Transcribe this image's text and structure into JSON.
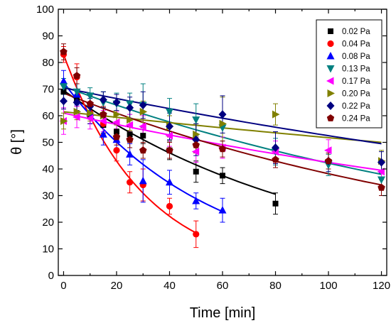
{
  "chart_data": {
    "type": "scatter",
    "xlabel": "Time [min]",
    "ylabel": "θ [°]",
    "xlim": [
      -2,
      122
    ],
    "ylim": [
      0,
      100
    ],
    "xticks": [
      0,
      10,
      20,
      30,
      40,
      50,
      60,
      70,
      80,
      90,
      100,
      110,
      120
    ],
    "xtick_labels": [
      "0",
      "",
      "20",
      "",
      "40",
      "",
      "60",
      "",
      "80",
      "",
      "100",
      "",
      "120"
    ],
    "yticks": [
      0,
      10,
      20,
      30,
      40,
      50,
      60,
      70,
      80,
      90,
      100
    ],
    "ytick_labels": [
      "0",
      "10",
      "20",
      "30",
      "40",
      "50",
      "60",
      "70",
      "80",
      "90",
      "100"
    ],
    "legend_position": "top-right",
    "grid": false,
    "series": [
      {
        "name": "0.02 Pa",
        "color": "#000000",
        "marker": "square",
        "x": [
          0,
          5,
          10,
          15,
          20,
          25,
          30,
          40,
          50,
          60,
          80
        ],
        "y": [
          69,
          66.5,
          60,
          56.5,
          54,
          53,
          52.5,
          47,
          39,
          37.5,
          27
        ],
        "err": [
          3,
          3,
          3,
          3,
          3,
          3,
          3,
          3.5,
          4,
          3,
          4
        ],
        "fit_x": [
          0,
          80
        ],
        "fit_y": [
          69.5,
          30.5
        ]
      },
      {
        "name": "0.04 Pa",
        "color": "#ff0000",
        "marker": "circle",
        "x": [
          0,
          5,
          10,
          15,
          20,
          25,
          30,
          40,
          50
        ],
        "y": [
          83,
          74.5,
          61,
          57,
          47,
          35,
          34,
          26,
          15.5
        ],
        "err": [
          3,
          5,
          4,
          4,
          4,
          4,
          6,
          3,
          5
        ],
        "fit_x": [
          0,
          50
        ],
        "fit_y": [
          83,
          16
        ]
      },
      {
        "name": "0.08 Pa",
        "color": "#0000ff",
        "marker": "triangle-up",
        "x": [
          0,
          5,
          10,
          15,
          20,
          25,
          30,
          40,
          50,
          60
        ],
        "y": [
          73,
          68,
          61,
          53,
          51,
          45.5,
          35.5,
          35,
          28,
          24.5
        ],
        "err": [
          4,
          4,
          4,
          4,
          4,
          4,
          8,
          4.5,
          3,
          4.5
        ],
        "fit_x": [
          0,
          60
        ],
        "fit_y": [
          72.5,
          24
        ]
      },
      {
        "name": "0.13 Pa",
        "color": "#008080",
        "marker": "triangle-down",
        "x": [
          0,
          5,
          10,
          15,
          20,
          25,
          30,
          40,
          50,
          60,
          80,
          100,
          120
        ],
        "y": [
          71,
          69,
          67.5,
          65,
          64.5,
          64.5,
          64,
          61.5,
          58.5,
          55.5,
          46.5,
          41.5,
          36
        ],
        "err": [
          3,
          3,
          3,
          4,
          4,
          4,
          8,
          5,
          6,
          5,
          5,
          4,
          3
        ],
        "fit_x": [
          0,
          120
        ],
        "fit_y": [
          71,
          38
        ]
      },
      {
        "name": "0.17 Pa",
        "color": "#ff00ff",
        "marker": "triangle-left",
        "x": [
          0,
          5,
          10,
          15,
          20,
          25,
          30,
          40,
          50,
          60,
          80,
          100,
          120
        ],
        "y": [
          58,
          59.5,
          59,
          58,
          57.5,
          56.5,
          56,
          52.5,
          46.5,
          48,
          46.5,
          47,
          39
        ],
        "err": [
          5,
          4,
          4,
          4,
          4,
          4,
          4,
          4,
          4,
          4,
          4,
          4,
          3
        ],
        "fit_x": [
          0,
          120
        ],
        "fit_y": [
          61,
          39.5
        ]
      },
      {
        "name": "0.20 Pa",
        "color": "#808000",
        "marker": "triangle-right",
        "x": [
          0,
          5,
          10,
          15,
          20,
          25,
          30,
          40,
          50,
          60,
          80,
          120
        ],
        "y": [
          58,
          61.5,
          61,
          60,
          60.5,
          58.5,
          61.5,
          56,
          53,
          57,
          60.5,
          43
        ],
        "err": [
          3,
          3,
          3,
          3,
          4,
          4,
          4,
          4,
          4,
          10,
          4,
          4
        ],
        "fit_x": [
          0,
          120
        ],
        "fit_y": [
          61.5,
          50
        ]
      },
      {
        "name": "0.22 Pa",
        "color": "#000080",
        "marker": "diamond",
        "x": [
          0,
          5,
          10,
          15,
          20,
          25,
          30,
          40,
          50,
          60,
          80,
          100,
          120
        ],
        "y": [
          65.5,
          65,
          63.5,
          66,
          65,
          63,
          64,
          56,
          51,
          60.5,
          48,
          43,
          42.5
        ],
        "err": [
          3,
          3,
          3,
          3,
          3,
          4,
          5,
          5,
          6,
          7,
          6,
          4,
          4
        ],
        "fit_x": [
          0,
          120
        ],
        "fit_y": [
          70.5,
          49.5
        ]
      },
      {
        "name": "0.24 Pa",
        "color": "#800000",
        "marker": "pentagon",
        "x": [
          0,
          5,
          10,
          15,
          20,
          25,
          30,
          40,
          50,
          60,
          80,
          100,
          120
        ],
        "y": [
          84,
          75,
          64.5,
          60.5,
          52,
          51,
          47,
          47,
          49,
          47.5,
          43.5,
          43,
          33
        ],
        "err": [
          3,
          3,
          3,
          3,
          3,
          3,
          3,
          3,
          3,
          3,
          3,
          3,
          3
        ],
        "fit_x": [
          0,
          120
        ],
        "fit_y": [
          68.5,
          34
        ]
      }
    ]
  }
}
